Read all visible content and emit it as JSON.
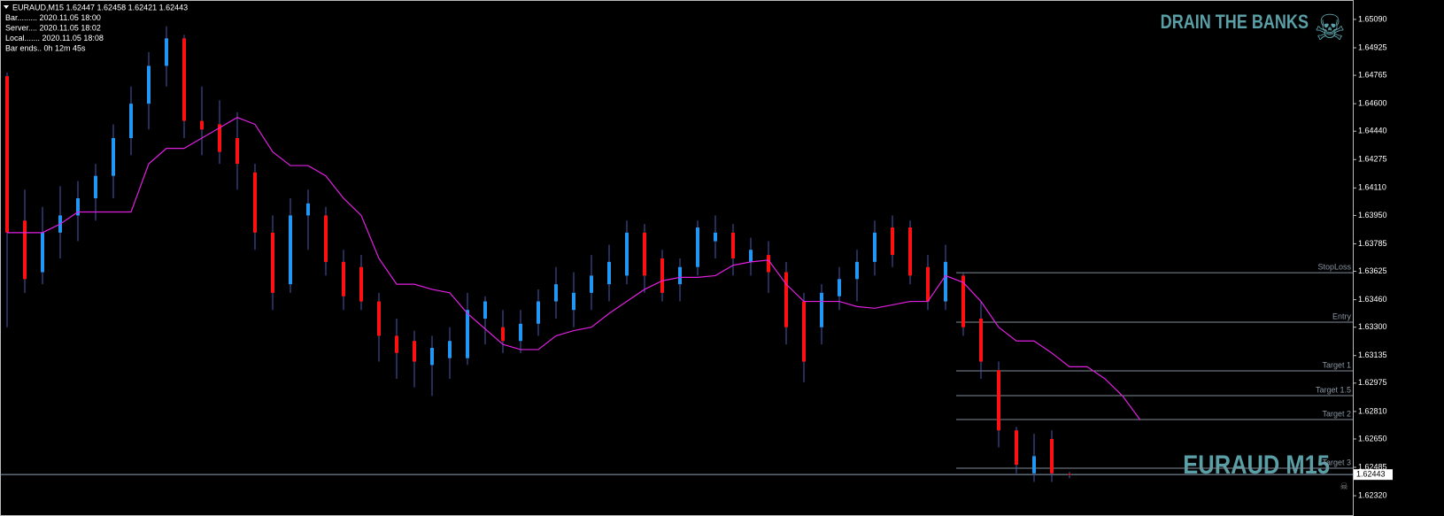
{
  "chart_data": {
    "type": "candlestick",
    "info_lines": [
      "EURAUD,M15  1.62447 1.62458 1.62421 1.62443",
      "Bar......... 2020.11.05 18:00",
      "Server.... 2020.11.05 18:02",
      "Local....... 2020.11.05 18:08",
      "Bar ends.. 0h 12m 45s"
    ],
    "watermark": "DRAIN THE BANKS",
    "symbol_label": "EURAUD M15",
    "up_color": "#2196f3",
    "down_color": "#ff1010",
    "wick_color": "#4a58b0",
    "ylim": [
      1.62202,
      1.65203
    ],
    "yticks": [
      {
        "value": 1.6509,
        "label": "1.65090"
      },
      {
        "value": 1.64925,
        "label": "1.64925"
      },
      {
        "value": 1.64765,
        "label": "1.64765"
      },
      {
        "value": 1.646,
        "label": "1.64600"
      },
      {
        "value": 1.6444,
        "label": "1.64440"
      },
      {
        "value": 1.64275,
        "label": "1.64275"
      },
      {
        "value": 1.6411,
        "label": "1.64110"
      },
      {
        "value": 1.6395,
        "label": "1.63950"
      },
      {
        "value": 1.63785,
        "label": "1.63785"
      },
      {
        "value": 1.63625,
        "label": "1.63625"
      },
      {
        "value": 1.6346,
        "label": "1.63460"
      },
      {
        "value": 1.633,
        "label": "1.63300"
      },
      {
        "value": 1.63135,
        "label": "1.63135"
      },
      {
        "value": 1.62975,
        "label": "1.62975"
      },
      {
        "value": 1.6281,
        "label": "1.62810"
      },
      {
        "value": 1.6265,
        "label": "1.62650"
      },
      {
        "value": 1.62485,
        "label": "1.62485"
      },
      {
        "value": 1.6232,
        "label": "1.62320"
      }
    ],
    "price_line": {
      "value": 1.62443,
      "label": "1.62443"
    },
    "candles": [
      [
        1.6476,
        1.6478,
        1.633,
        1.6385
      ],
      [
        1.6392,
        1.641,
        1.635,
        1.6358
      ],
      [
        1.6362,
        1.64,
        1.6355,
        1.6385
      ],
      [
        1.6385,
        1.6412,
        1.637,
        1.6395
      ],
      [
        1.6395,
        1.6415,
        1.638,
        1.6405
      ],
      [
        1.6405,
        1.6425,
        1.6392,
        1.6418
      ],
      [
        1.6418,
        1.6448,
        1.6405,
        1.644
      ],
      [
        1.644,
        1.647,
        1.643,
        1.646
      ],
      [
        1.646,
        1.649,
        1.6445,
        1.6482
      ],
      [
        1.6482,
        1.6505,
        1.647,
        1.6498
      ],
      [
        1.6498,
        1.65,
        1.644,
        1.645
      ],
      [
        1.645,
        1.647,
        1.643,
        1.6445
      ],
      [
        1.6448,
        1.6462,
        1.6425,
        1.6432
      ],
      [
        1.644,
        1.6455,
        1.641,
        1.6425
      ],
      [
        1.642,
        1.6425,
        1.6375,
        1.6385
      ],
      [
        1.6385,
        1.6395,
        1.634,
        1.635
      ],
      [
        1.6355,
        1.6405,
        1.635,
        1.6395
      ],
      [
        1.6395,
        1.641,
        1.6375,
        1.6402
      ],
      [
        1.6395,
        1.64,
        1.636,
        1.6368
      ],
      [
        1.6368,
        1.6375,
        1.634,
        1.6348
      ],
      [
        1.6365,
        1.6372,
        1.634,
        1.6345
      ],
      [
        1.6345,
        1.635,
        1.631,
        1.6325
      ],
      [
        1.6325,
        1.6335,
        1.63,
        1.6315
      ],
      [
        1.6322,
        1.6328,
        1.6295,
        1.631
      ],
      [
        1.6308,
        1.6325,
        1.629,
        1.6318
      ],
      [
        1.6312,
        1.633,
        1.63,
        1.6322
      ],
      [
        1.6312,
        1.635,
        1.6308,
        1.634
      ],
      [
        1.6335,
        1.6348,
        1.632,
        1.6345
      ],
      [
        1.633,
        1.634,
        1.6315,
        1.6322
      ],
      [
        1.6322,
        1.634,
        1.6315,
        1.6332
      ],
      [
        1.6332,
        1.6352,
        1.6325,
        1.6345
      ],
      [
        1.6345,
        1.6365,
        1.6335,
        1.6355
      ],
      [
        1.634,
        1.6362,
        1.633,
        1.635
      ],
      [
        1.635,
        1.6372,
        1.634,
        1.636
      ],
      [
        1.6355,
        1.6378,
        1.6345,
        1.6368
      ],
      [
        1.636,
        1.6392,
        1.6355,
        1.6385
      ],
      [
        1.6385,
        1.639,
        1.635,
        1.636
      ],
      [
        1.637,
        1.6375,
        1.6345,
        1.635
      ],
      [
        1.6355,
        1.637,
        1.6345,
        1.6365
      ],
      [
        1.6365,
        1.6392,
        1.636,
        1.6388
      ],
      [
        1.638,
        1.6395,
        1.637,
        1.6385
      ],
      [
        1.6385,
        1.639,
        1.636,
        1.637
      ],
      [
        1.6368,
        1.6382,
        1.636,
        1.6375
      ],
      [
        1.6372,
        1.638,
        1.635,
        1.6362
      ],
      [
        1.6362,
        1.6368,
        1.632,
        1.633
      ],
      [
        1.6345,
        1.635,
        1.6298,
        1.631
      ],
      [
        1.633,
        1.6355,
        1.632,
        1.635
      ],
      [
        1.6348,
        1.6365,
        1.634,
        1.6358
      ],
      [
        1.6358,
        1.6375,
        1.6345,
        1.6368
      ],
      [
        1.6368,
        1.6392,
        1.636,
        1.6385
      ],
      [
        1.6388,
        1.6395,
        1.6365,
        1.6372
      ],
      [
        1.6388,
        1.6392,
        1.6355,
        1.636
      ],
      [
        1.6365,
        1.6372,
        1.634,
        1.6345
      ],
      [
        1.6345,
        1.6378,
        1.634,
        1.6368
      ],
      [
        1.636,
        1.6362,
        1.6325,
        1.633
      ],
      [
        1.6335,
        1.6345,
        1.63,
        1.631
      ],
      [
        1.6305,
        1.631,
        1.626,
        1.627
      ],
      [
        1.627,
        1.6272,
        1.6245,
        1.625
      ],
      [
        1.6245,
        1.6268,
        1.624,
        1.6255
      ],
      [
        1.6265,
        1.627,
        1.624,
        1.6245
      ],
      [
        1.62447,
        1.62458,
        1.62421,
        1.62443
      ]
    ],
    "indicator": {
      "color": "#e020e0",
      "values": [
        1.6385,
        1.6385,
        1.6385,
        1.639,
        1.6397,
        1.6397,
        1.6397,
        1.6397,
        1.6425,
        1.6434,
        1.6434,
        1.644,
        1.6446,
        1.6452,
        1.6448,
        1.6432,
        1.6424,
        1.6424,
        1.6418,
        1.6405,
        1.6395,
        1.637,
        1.6355,
        1.6355,
        1.6352,
        1.635,
        1.6338,
        1.6329,
        1.632,
        1.6317,
        1.6317,
        1.6325,
        1.6328,
        1.633,
        1.6338,
        1.6345,
        1.6352,
        1.6357,
        1.6359,
        1.6359,
        1.636,
        1.6366,
        1.6368,
        1.6369,
        1.6355,
        1.6345,
        1.6345,
        1.6345,
        1.6342,
        1.6341,
        1.6343,
        1.6345,
        1.6345,
        1.636,
        1.6356,
        1.6345,
        1.633,
        1.6322,
        1.6322,
        1.6315,
        1.6307,
        1.6307,
        1.63,
        1.629,
        1.6276
      ]
    },
    "levels": [
      {
        "name": "StopLoss",
        "value": 1.63617
      },
      {
        "name": "Entry",
        "value": 1.63329
      },
      {
        "name": "Target 1",
        "value": 1.63046
      },
      {
        "name": "Target 1.5",
        "value": 1.62902
      },
      {
        "name": "Target 2",
        "value": 1.62763
      },
      {
        "name": "Target 3",
        "value": 1.6248
      }
    ]
  }
}
